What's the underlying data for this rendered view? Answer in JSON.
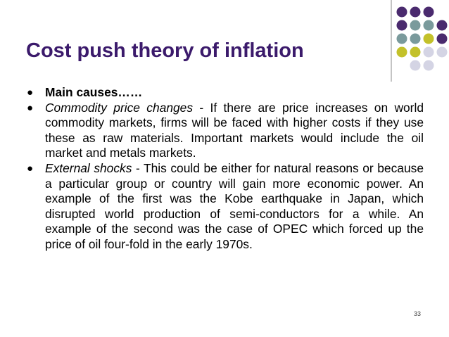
{
  "title": "Cost push theory of inflation",
  "bullets": [
    {
      "text": "Main causes……"
    },
    {
      "lead": "Commodity price changes",
      "text": " - If there are price increases on world commodity markets, firms will be faced with higher costs if they use these as raw materials. Important markets would include the oil market and metals markets."
    },
    {
      "lead": "External shocks",
      "text": " - This could be either for natural reasons or because a particular group or country will gain more economic power. An example of the first was the Kobe earthquake in Japan, which disrupted world production of semi-conductors for a while. An example of the second was the case of  OPEC which forced up the price of oil four-fold in the early 1970s."
    }
  ],
  "page_number": "33"
}
